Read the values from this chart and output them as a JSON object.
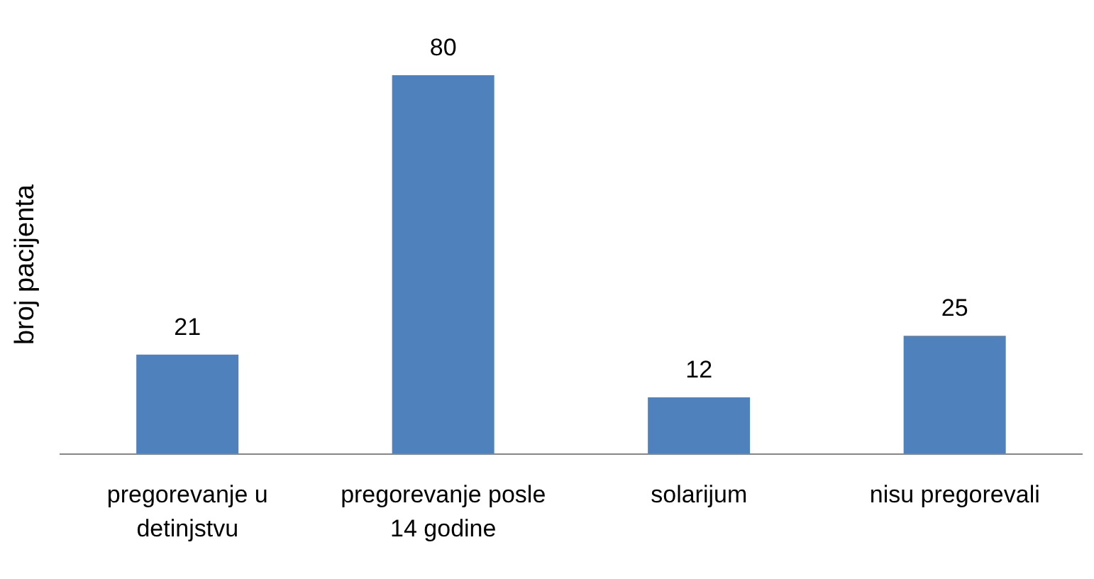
{
  "chart_data": {
    "type": "bar",
    "ylabel": "broj pacijenta",
    "categories": [
      "pregorevanje u detinjstvu",
      "pregorevanje posle 14 godine",
      "solarijum",
      "nisu pregorevali"
    ],
    "values": [
      21,
      80,
      12,
      25
    ],
    "color": "#4f81bd",
    "data_labels": true
  }
}
